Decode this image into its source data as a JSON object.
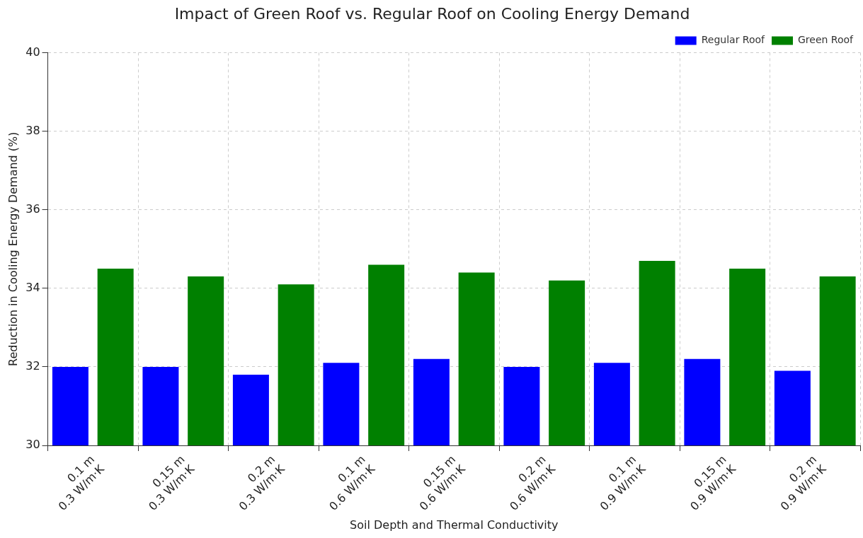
{
  "chart_data": {
    "type": "bar",
    "title": "Impact of Green Roof vs. Regular Roof on Cooling Energy Demand",
    "xlabel": "Soil Depth and Thermal Conductivity",
    "ylabel": "Reduction in Cooling Energy Demand (%)",
    "categories": [
      "0.1 m\n0.3 W/m·K",
      "0.15 m\n0.3 W/m·K",
      "0.2 m\n0.3 W/m·K",
      "0.1 m\n0.6 W/m·K",
      "0.15 m\n0.6 W/m·K",
      "0.2 m\n0.6 W/m·K",
      "0.1 m\n0.9 W/m·K",
      "0.15 m\n0.9 W/m·K",
      "0.2 m\n0.9 W/m·K"
    ],
    "series": [
      {
        "name": "Regular Roof",
        "color": "#0000ff",
        "values": [
          32.0,
          32.0,
          31.8,
          32.1,
          32.2,
          32.0,
          32.1,
          32.2,
          31.9
        ]
      },
      {
        "name": "Green Roof",
        "color": "#008000",
        "values": [
          34.5,
          34.3,
          34.1,
          34.6,
          34.4,
          34.2,
          34.7,
          34.5,
          34.3
        ]
      }
    ],
    "ylim": [
      30,
      40
    ],
    "yticks": [
      30,
      32,
      34,
      36,
      38,
      40
    ],
    "grid": true,
    "legend": "top right"
  }
}
